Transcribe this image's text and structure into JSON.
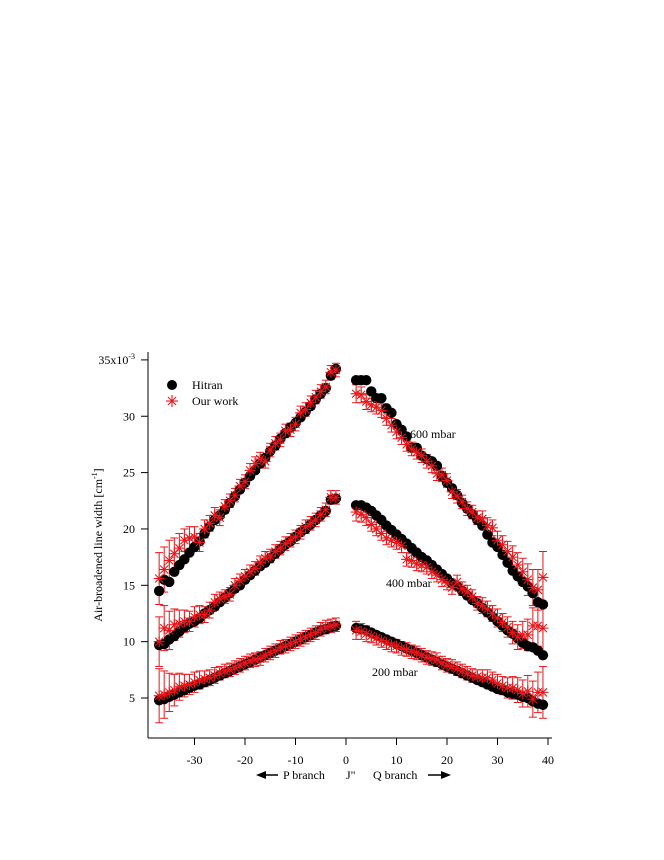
{
  "chart_data": {
    "type": "scatter",
    "title": "",
    "xlabel": "J\"",
    "xlabel_left": "P branch",
    "xlabel_right": "Q branch",
    "ylabel": "Air-broadened line width [cm",
    "ylabel_exponent": "-1",
    "ylabel_close": "]",
    "xlim": [
      -38,
      41
    ],
    "ylim": [
      2.5,
      35.5
    ],
    "x_ticks": [
      -30,
      -20,
      -10,
      0,
      10,
      20,
      30,
      40
    ],
    "x_tick_labels": [
      "-30",
      "-20",
      "-10",
      "0",
      "10",
      "20",
      "30",
      "40"
    ],
    "y_ticks": [
      5,
      10,
      15,
      20,
      25,
      30,
      35
    ],
    "y_tick_labels": [
      "5",
      "10",
      "15",
      "20",
      "25",
      "30",
      "35x10"
    ],
    "y_top_exponent": "-3",
    "grid": false,
    "legend_position": "top-left",
    "legend": [
      {
        "label": "Hitran",
        "marker": "circle",
        "color": "#000000"
      },
      {
        "label": "Our work",
        "marker": "asterisk",
        "color": "#e8171b"
      }
    ],
    "annotations": [
      "600 mbar",
      "400 mbar",
      "200 mbar"
    ],
    "series": [
      {
        "name": "Hitran",
        "group": "600 mbar",
        "branch": "P",
        "x": [
          -37,
          -36,
          -35,
          -34,
          -33,
          -32,
          -31,
          -30,
          -29,
          -28,
          -27,
          -26,
          -25,
          -24,
          -23,
          -22,
          -21,
          -20,
          -19,
          -18,
          -17,
          -16,
          -15,
          -14,
          -13,
          -12,
          -11,
          -10,
          -9,
          -8,
          -7,
          -6,
          -5,
          -4,
          -3,
          -2
        ],
        "values": [
          14.5,
          15.5,
          15.3,
          16.2,
          16.8,
          17.3,
          17.9,
          18.4,
          18.9,
          19.6,
          20.2,
          20.8,
          21.2,
          21.7,
          22.3,
          22.9,
          23.5,
          24.1,
          24.7,
          25.2,
          25.8,
          26.3,
          26.9,
          27.4,
          28.0,
          28.5,
          29.0,
          29.4,
          29.9,
          30.4,
          30.9,
          31.5,
          32.0,
          32.5,
          33.6,
          34.2
        ]
      },
      {
        "name": "Our work",
        "group": "600 mbar",
        "branch": "P",
        "x": [
          -37,
          -36,
          -35,
          -34,
          -33,
          -32,
          -31,
          -30,
          -29,
          -28,
          -27,
          -26,
          -25,
          -24,
          -23,
          -22,
          -21,
          -20,
          -19,
          -18,
          -17,
          -16,
          -15,
          -14,
          -13,
          -12,
          -11,
          -10,
          -9,
          -8,
          -7,
          -6,
          -5,
          -4,
          -3,
          -2
        ],
        "values": [
          15.6,
          16.4,
          17.2,
          17.8,
          18.3,
          19.0,
          19.2,
          19.3,
          18.8,
          20.0,
          20.5,
          21.2,
          21.0,
          22.0,
          22.5,
          23.0,
          23.8,
          24.2,
          25.2,
          25.8,
          26.2,
          26.0,
          27.0,
          27.6,
          27.9,
          28.7,
          28.8,
          29.3,
          30.3,
          30.6,
          31.2,
          31.7,
          32.2,
          32.6,
          33.9,
          34.1
        ],
        "errors": [
          2.3,
          2.0,
          1.8,
          1.4,
          1.3,
          1.0,
          1.0,
          0.9,
          0.8,
          0.8,
          0.7,
          0.7,
          0.7,
          0.6,
          0.6,
          0.6,
          0.6,
          0.6,
          0.6,
          0.6,
          0.6,
          0.6,
          0.6,
          0.6,
          0.6,
          0.6,
          0.6,
          0.6,
          0.6,
          0.6,
          0.6,
          0.6,
          0.6,
          0.6,
          0.6,
          0.6
        ]
      },
      {
        "name": "Hitran",
        "group": "600 mbar",
        "branch": "Q",
        "x": [
          2,
          3,
          4,
          5,
          6,
          7,
          8,
          9,
          10,
          11,
          12,
          13,
          14,
          15,
          16,
          17,
          18,
          19,
          20,
          21,
          22,
          23,
          24,
          25,
          26,
          27,
          28,
          29,
          30,
          31,
          32,
          33,
          34,
          35,
          36,
          37,
          38,
          39
        ],
        "values": [
          33.2,
          33.2,
          33.2,
          32.2,
          31.6,
          31.6,
          30.7,
          30.3,
          29.3,
          28.8,
          28.2,
          27.2,
          27.2,
          26.5,
          26.2,
          26.0,
          25.6,
          24.7,
          24.1,
          23.6,
          23.0,
          22.3,
          21.8,
          21.3,
          20.8,
          20.3,
          19.5,
          18.8,
          18.4,
          17.7,
          17.0,
          16.3,
          15.8,
          15.3,
          14.9,
          14.3,
          13.5,
          13.3
        ]
      },
      {
        "name": "Our work",
        "group": "600 mbar",
        "branch": "Q",
        "x": [
          2,
          3,
          4,
          5,
          6,
          7,
          8,
          9,
          10,
          11,
          12,
          13,
          14,
          15,
          16,
          17,
          18,
          19,
          20,
          21,
          22,
          23,
          24,
          25,
          26,
          27,
          28,
          29,
          30,
          31,
          32,
          33,
          34,
          35,
          36,
          37,
          38,
          39
        ],
        "values": [
          32.0,
          31.9,
          31.3,
          31.0,
          30.8,
          30.5,
          29.8,
          29.2,
          28.6,
          28.1,
          27.5,
          27.1,
          26.8,
          26.5,
          26.0,
          25.6,
          24.9,
          24.8,
          24.3,
          23.3,
          22.9,
          22.4,
          21.8,
          21.5,
          21.0,
          20.9,
          20.3,
          20.1,
          19.0,
          18.6,
          18.0,
          17.5,
          16.8,
          16.2,
          15.5,
          14.8,
          14.6,
          15.7
        ],
        "errors": [
          0.8,
          0.7,
          0.7,
          0.6,
          0.6,
          0.6,
          0.6,
          0.6,
          0.6,
          0.6,
          0.6,
          0.6,
          0.6,
          0.6,
          0.6,
          0.6,
          0.6,
          0.6,
          0.6,
          0.6,
          0.6,
          0.6,
          0.6,
          0.6,
          0.6,
          0.7,
          0.7,
          0.7,
          0.8,
          0.8,
          0.9,
          1.0,
          1.1,
          1.2,
          1.4,
          1.6,
          1.8,
          2.3
        ]
      },
      {
        "name": "Hitran",
        "group": "400 mbar",
        "branch": "P",
        "x": [
          -37,
          -36,
          -35,
          -34,
          -33,
          -32,
          -31,
          -30,
          -29,
          -28,
          -27,
          -26,
          -25,
          -24,
          -23,
          -22,
          -21,
          -20,
          -19,
          -18,
          -17,
          -16,
          -15,
          -14,
          -13,
          -12,
          -11,
          -10,
          -9,
          -8,
          -7,
          -6,
          -5,
          -4,
          -3,
          -2
        ],
        "values": [
          9.7,
          9.8,
          10.2,
          10.5,
          10.9,
          11.3,
          11.6,
          11.8,
          12.1,
          12.5,
          12.8,
          13.1,
          13.5,
          13.9,
          14.3,
          14.7,
          15.0,
          15.5,
          15.9,
          16.3,
          16.7,
          17.0,
          17.4,
          17.8,
          18.2,
          18.6,
          18.9,
          19.3,
          19.7,
          20.0,
          20.4,
          20.8,
          21.2,
          21.6,
          22.6,
          22.7
        ]
      },
      {
        "name": "Our work",
        "group": "400 mbar",
        "branch": "P",
        "x": [
          -37,
          -36,
          -35,
          -34,
          -33,
          -32,
          -31,
          -30,
          -29,
          -28,
          -27,
          -26,
          -25,
          -24,
          -23,
          -22,
          -21,
          -20,
          -19,
          -18,
          -17,
          -16,
          -15,
          -14,
          -13,
          -12,
          -11,
          -10,
          -9,
          -8,
          -7,
          -6,
          -5,
          -4,
          -3,
          -2
        ],
        "values": [
          10.0,
          11.2,
          11.0,
          11.5,
          11.6,
          11.8,
          11.8,
          12.2,
          12.4,
          12.4,
          12.8,
          13.5,
          13.8,
          14.0,
          14.2,
          15.0,
          15.4,
          15.8,
          16.2,
          16.5,
          17.0,
          17.4,
          17.6,
          18.0,
          18.3,
          18.7,
          19.0,
          19.3,
          19.7,
          20.2,
          20.5,
          20.8,
          21.3,
          21.7,
          22.8,
          22.8
        ],
        "errors": [
          2.2,
          2.0,
          1.7,
          1.4,
          1.2,
          1.0,
          0.9,
          0.9,
          0.8,
          0.7,
          0.7,
          0.7,
          0.6,
          0.6,
          0.6,
          0.6,
          0.6,
          0.6,
          0.6,
          0.6,
          0.6,
          0.6,
          0.6,
          0.6,
          0.6,
          0.6,
          0.6,
          0.6,
          0.6,
          0.6,
          0.6,
          0.6,
          0.6,
          0.6,
          0.6,
          0.6
        ]
      },
      {
        "name": "Hitran",
        "group": "400 mbar",
        "branch": "Q",
        "x": [
          2,
          3,
          4,
          5,
          6,
          7,
          8,
          9,
          10,
          11,
          12,
          13,
          14,
          15,
          16,
          17,
          18,
          19,
          20,
          21,
          22,
          23,
          24,
          25,
          26,
          27,
          28,
          29,
          30,
          31,
          32,
          33,
          34,
          35,
          36,
          37,
          38,
          39
        ],
        "values": [
          22.1,
          22.1,
          21.9,
          21.6,
          21.2,
          20.8,
          20.3,
          19.9,
          19.5,
          19.1,
          18.7,
          18.3,
          17.9,
          17.5,
          17.2,
          16.8,
          16.4,
          16.0,
          15.6,
          15.2,
          14.9,
          14.5,
          14.1,
          13.7,
          13.4,
          13.0,
          12.6,
          12.2,
          11.8,
          11.4,
          11.0,
          10.7,
          10.3,
          9.9,
          9.6,
          9.5,
          9.2,
          8.8
        ]
      },
      {
        "name": "Our work",
        "group": "400 mbar",
        "branch": "Q",
        "x": [
          2,
          3,
          4,
          5,
          6,
          7,
          8,
          9,
          10,
          11,
          12,
          13,
          14,
          15,
          16,
          17,
          18,
          19,
          20,
          21,
          22,
          23,
          24,
          25,
          26,
          27,
          28,
          29,
          30,
          31,
          32,
          33,
          34,
          35,
          36,
          37,
          38,
          39
        ],
        "values": [
          21.5,
          21.3,
          21.0,
          20.4,
          20.0,
          19.6,
          19.2,
          19.0,
          18.8,
          18.5,
          17.3,
          17.2,
          16.9,
          16.8,
          16.6,
          16.2,
          15.9,
          15.5,
          15.2,
          14.8,
          15.3,
          14.7,
          14.4,
          14.0,
          13.4,
          13.2,
          12.9,
          12.5,
          12.1,
          11.7,
          11.3,
          10.8,
          10.4,
          10.6,
          10.6,
          11.4,
          11.4,
          11.2
        ],
        "errors": [
          0.8,
          0.7,
          0.7,
          0.6,
          0.6,
          0.6,
          0.6,
          0.6,
          0.6,
          0.6,
          0.6,
          0.6,
          0.6,
          0.6,
          0.6,
          0.6,
          0.6,
          0.6,
          0.6,
          0.6,
          0.6,
          0.6,
          0.6,
          0.6,
          0.6,
          0.7,
          0.7,
          0.7,
          0.8,
          0.8,
          0.9,
          1.0,
          1.1,
          1.2,
          1.4,
          1.6,
          1.8,
          2.3
        ]
      },
      {
        "name": "Hitran",
        "group": "200 mbar",
        "branch": "P",
        "x": [
          -37,
          -36,
          -35,
          -34,
          -33,
          -32,
          -31,
          -30,
          -29,
          -28,
          -27,
          -26,
          -25,
          -24,
          -23,
          -22,
          -21,
          -20,
          -19,
          -18,
          -17,
          -16,
          -15,
          -14,
          -13,
          -12,
          -11,
          -10,
          -9,
          -8,
          -7,
          -6,
          -5,
          -4,
          -3,
          -2
        ],
        "values": [
          4.8,
          4.9,
          5.1,
          5.3,
          5.5,
          5.7,
          5.9,
          6.1,
          6.2,
          6.4,
          6.6,
          6.8,
          7.0,
          7.2,
          7.4,
          7.6,
          7.8,
          8.0,
          8.2,
          8.4,
          8.6,
          8.8,
          9.0,
          9.2,
          9.4,
          9.6,
          9.8,
          10.0,
          10.2,
          10.4,
          10.6,
          10.8,
          11.0,
          11.1,
          11.3,
          11.4
        ]
      },
      {
        "name": "Our work",
        "group": "200 mbar",
        "branch": "P",
        "x": [
          -37,
          -36,
          -35,
          -34,
          -33,
          -32,
          -31,
          -30,
          -29,
          -28,
          -27,
          -26,
          -25,
          -24,
          -23,
          -22,
          -21,
          -20,
          -19,
          -18,
          -17,
          -16,
          -15,
          -14,
          -13,
          -12,
          -11,
          -10,
          -9,
          -8,
          -7,
          -6,
          -5,
          -4,
          -3,
          -2
        ],
        "values": [
          5.2,
          5.3,
          5.5,
          5.7,
          6.0,
          6.1,
          6.2,
          6.4,
          6.6,
          6.7,
          6.8,
          7.0,
          7.2,
          7.4,
          7.5,
          7.7,
          7.9,
          8.1,
          8.3,
          8.4,
          8.5,
          8.8,
          9.0,
          9.2,
          9.5,
          9.6,
          9.8,
          10.0,
          10.2,
          10.4,
          10.6,
          10.8,
          11.1,
          11.3,
          11.4,
          11.5
        ],
        "errors": [
          2.4,
          2.1,
          1.7,
          1.4,
          1.2,
          1.0,
          0.9,
          0.9,
          0.8,
          0.7,
          0.7,
          0.7,
          0.6,
          0.6,
          0.6,
          0.6,
          0.6,
          0.6,
          0.6,
          0.6,
          0.6,
          0.6,
          0.6,
          0.6,
          0.6,
          0.6,
          0.6,
          0.6,
          0.6,
          0.6,
          0.6,
          0.6,
          0.6,
          0.6,
          0.6,
          0.6
        ]
      },
      {
        "name": "Hitran",
        "group": "200 mbar",
        "branch": "Q",
        "x": [
          2,
          3,
          4,
          5,
          6,
          7,
          8,
          9,
          10,
          11,
          12,
          13,
          14,
          15,
          16,
          17,
          18,
          19,
          20,
          21,
          22,
          23,
          24,
          25,
          26,
          27,
          28,
          29,
          30,
          31,
          32,
          33,
          34,
          35,
          36,
          37,
          38,
          39
        ],
        "values": [
          11.2,
          11.1,
          11.0,
          10.8,
          10.6,
          10.4,
          10.2,
          10.0,
          9.8,
          9.6,
          9.4,
          9.2,
          9.0,
          8.8,
          8.6,
          8.4,
          8.2,
          8.0,
          7.8,
          7.6,
          7.4,
          7.2,
          7.0,
          6.8,
          6.6,
          6.4,
          6.2,
          6.0,
          5.8,
          5.7,
          5.5,
          5.4,
          5.3,
          5.1,
          5.0,
          4.7,
          4.5,
          4.4
        ]
      },
      {
        "name": "Our work",
        "group": "200 mbar",
        "branch": "Q",
        "x": [
          2,
          3,
          4,
          5,
          6,
          7,
          8,
          9,
          10,
          11,
          12,
          13,
          14,
          15,
          16,
          17,
          18,
          19,
          20,
          21,
          22,
          23,
          24,
          25,
          26,
          27,
          28,
          29,
          30,
          31,
          32,
          33,
          34,
          35,
          36,
          37,
          38,
          39
        ],
        "values": [
          11.0,
          10.9,
          10.7,
          10.5,
          10.3,
          10.1,
          9.9,
          9.7,
          9.6,
          9.4,
          9.3,
          9.1,
          9.0,
          8.8,
          8.6,
          8.5,
          8.4,
          8.1,
          7.9,
          7.8,
          7.6,
          7.4,
          7.2,
          7.0,
          6.9,
          6.8,
          6.8,
          6.6,
          6.3,
          6.1,
          5.9,
          5.9,
          5.7,
          5.4,
          5.6,
          4.9,
          5.5,
          5.5
        ],
        "errors": [
          0.8,
          0.7,
          0.7,
          0.6,
          0.6,
          0.6,
          0.6,
          0.6,
          0.6,
          0.6,
          0.6,
          0.6,
          0.6,
          0.6,
          0.6,
          0.6,
          0.6,
          0.6,
          0.6,
          0.6,
          0.6,
          0.6,
          0.6,
          0.6,
          0.6,
          0.7,
          0.7,
          0.7,
          0.8,
          0.8,
          0.9,
          1.0,
          1.1,
          1.2,
          1.4,
          1.6,
          1.8,
          2.3
        ]
      }
    ]
  }
}
